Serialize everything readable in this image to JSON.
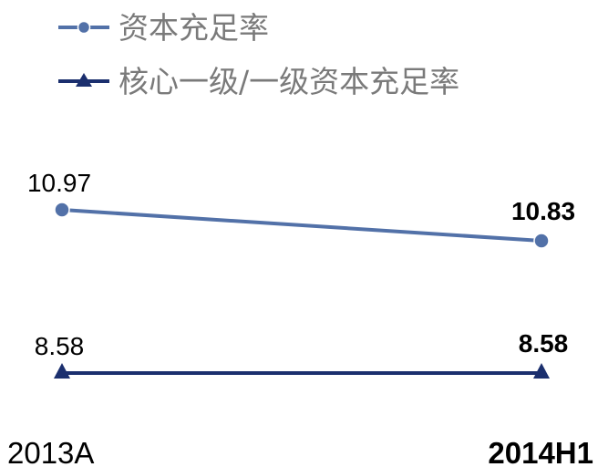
{
  "chart_data": {
    "type": "line",
    "title": "",
    "xlabel": "",
    "ylabel": "",
    "categories": [
      "2013A",
      "2014H1"
    ],
    "series": [
      {
        "name": "资本充足率",
        "values": [
          10.97,
          10.83
        ],
        "labels": [
          "10.97",
          "10.83"
        ],
        "color": "#5271a8",
        "marker": "circle"
      },
      {
        "name": "核心一级/一级资本充足率",
        "values": [
          8.58,
          8.58
        ],
        "labels": [
          "8.58",
          "8.58"
        ],
        "color": "#1b2f6e",
        "marker": "triangle"
      }
    ],
    "grid": false,
    "legend": "top-left"
  }
}
